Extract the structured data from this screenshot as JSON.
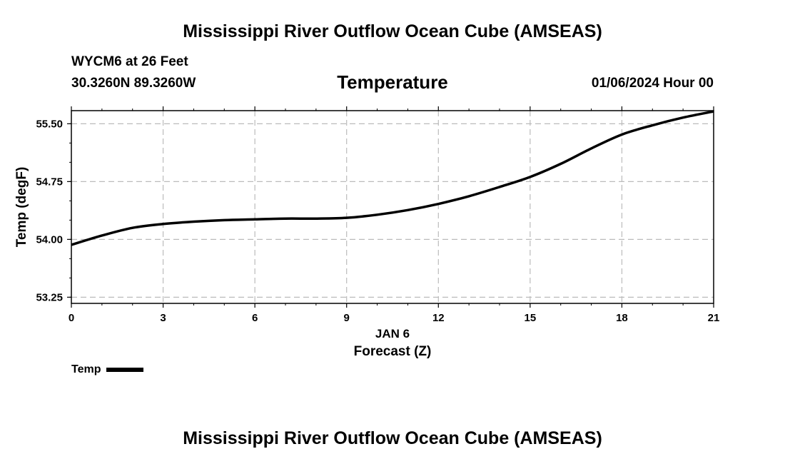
{
  "header": {
    "top_title": "Mississippi River Outflow Ocean Cube (AMSEAS)",
    "station": "WYCM6 at 26 Feet",
    "coords": "30.3260N  89.3260W",
    "center_title": "Temperature",
    "date": "01/06/2024 Hour 00"
  },
  "footer": {
    "bottom_title": "Mississippi River Outflow Ocean Cube (AMSEAS)"
  },
  "chart_data": {
    "type": "line",
    "title": "Temperature",
    "xlabel": "Forecast (Z)",
    "x_date_label": "JAN 6",
    "ylabel": "Temp (degF)",
    "xlim": [
      0,
      21
    ],
    "ylim": [
      53.17,
      55.67
    ],
    "x_ticks": [
      0,
      3,
      6,
      9,
      12,
      15,
      18,
      21
    ],
    "x_tick_labels": [
      "0",
      "3",
      "6",
      "9",
      "12",
      "15",
      "18",
      "21"
    ],
    "y_ticks": [
      53.25,
      54.0,
      54.75,
      55.5
    ],
    "y_tick_labels": [
      "53.25",
      "54.00",
      "54.75",
      "55.50"
    ],
    "grid": true,
    "legend_position": "bottom-left",
    "series": [
      {
        "name": "Temp",
        "color": "#000000",
        "x": [
          0,
          1,
          2,
          3,
          4,
          5,
          6,
          7,
          8,
          9,
          10,
          11,
          12,
          13,
          14,
          15,
          16,
          17,
          18,
          19,
          20,
          21
        ],
        "values": [
          53.93,
          54.05,
          54.15,
          54.2,
          54.23,
          54.25,
          54.26,
          54.27,
          54.27,
          54.28,
          54.32,
          54.38,
          54.46,
          54.56,
          54.68,
          54.81,
          54.98,
          55.18,
          55.36,
          55.48,
          55.58,
          55.66
        ]
      }
    ]
  }
}
